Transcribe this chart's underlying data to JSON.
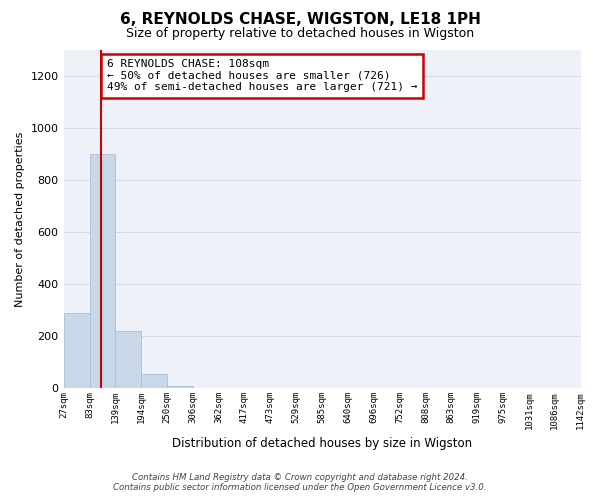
{
  "title": "6, REYNOLDS CHASE, WIGSTON, LE18 1PH",
  "subtitle": "Size of property relative to detached houses in Wigston",
  "xlabel": "Distribution of detached houses by size in Wigston",
  "ylabel": "Number of detached properties",
  "bar_edges": [
    27,
    83,
    139,
    194,
    250,
    306,
    362,
    417,
    473,
    529,
    585,
    640,
    696,
    752,
    808,
    863,
    919,
    975,
    1031,
    1086,
    1142
  ],
  "bar_heights": [
    290,
    900,
    220,
    55,
    10,
    0,
    0,
    0,
    0,
    0,
    0,
    0,
    0,
    0,
    0,
    0,
    0,
    0,
    0,
    0
  ],
  "bar_color": "#c8d8e8",
  "bar_edgecolor": "#aac0d4",
  "grid_color": "#d4dce8",
  "property_line_x": 108,
  "property_line_color": "#cc0000",
  "annotation_line1": "6 REYNOLDS CHASE: 108sqm",
  "annotation_line2": "← 50% of detached houses are smaller (726)",
  "annotation_line3": "49% of semi-detached houses are larger (721) →",
  "annotation_box_color": "#cc0000",
  "ylim": [
    0,
    1300
  ],
  "yticks": [
    0,
    200,
    400,
    600,
    800,
    1000,
    1200
  ],
  "tick_labels": [
    "27sqm",
    "83sqm",
    "139sqm",
    "194sqm",
    "250sqm",
    "306sqm",
    "362sqm",
    "417sqm",
    "473sqm",
    "529sqm",
    "585sqm",
    "640sqm",
    "696sqm",
    "752sqm",
    "808sqm",
    "863sqm",
    "919sqm",
    "975sqm",
    "1031sqm",
    "1086sqm",
    "1142sqm"
  ],
  "footnote": "Contains HM Land Registry data © Crown copyright and database right 2024.\nContains public sector information licensed under the Open Government Licence v3.0.",
  "background_color": "#ffffff",
  "plot_bg_color": "#eef2f8"
}
